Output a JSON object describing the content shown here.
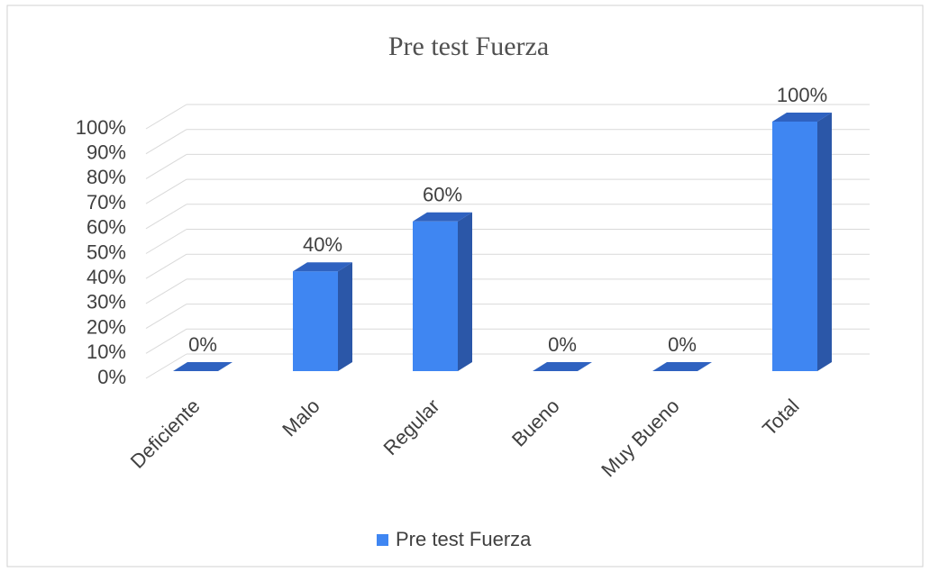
{
  "chart_data": {
    "type": "bar3d",
    "title": "Pre test Fuerza",
    "categories": [
      "Deficiente",
      "Malo",
      "Regular",
      "Bueno",
      "Muy Bueno",
      "Total"
    ],
    "series": [
      {
        "name": "Pre test Fuerza",
        "color": "#3f86f2",
        "values": [
          0,
          40,
          60,
          0,
          0,
          100
        ],
        "value_labels": [
          "0%",
          "40%",
          "60%",
          "0%",
          "0%",
          "100%"
        ]
      }
    ],
    "ylim": [
      0,
      100
    ],
    "yticks": [
      {
        "value": 0,
        "label": "0%"
      },
      {
        "value": 10,
        "label": "10%"
      },
      {
        "value": 20,
        "label": "20%"
      },
      {
        "value": 30,
        "label": "30%"
      },
      {
        "value": 40,
        "label": "40%"
      },
      {
        "value": 50,
        "label": "50%"
      },
      {
        "value": 60,
        "label": "60%"
      },
      {
        "value": 70,
        "label": "70%"
      },
      {
        "value": 80,
        "label": "80%"
      },
      {
        "value": 90,
        "label": "90%"
      },
      {
        "value": 100,
        "label": "100%"
      }
    ],
    "grid": true,
    "legend": "bottom"
  }
}
